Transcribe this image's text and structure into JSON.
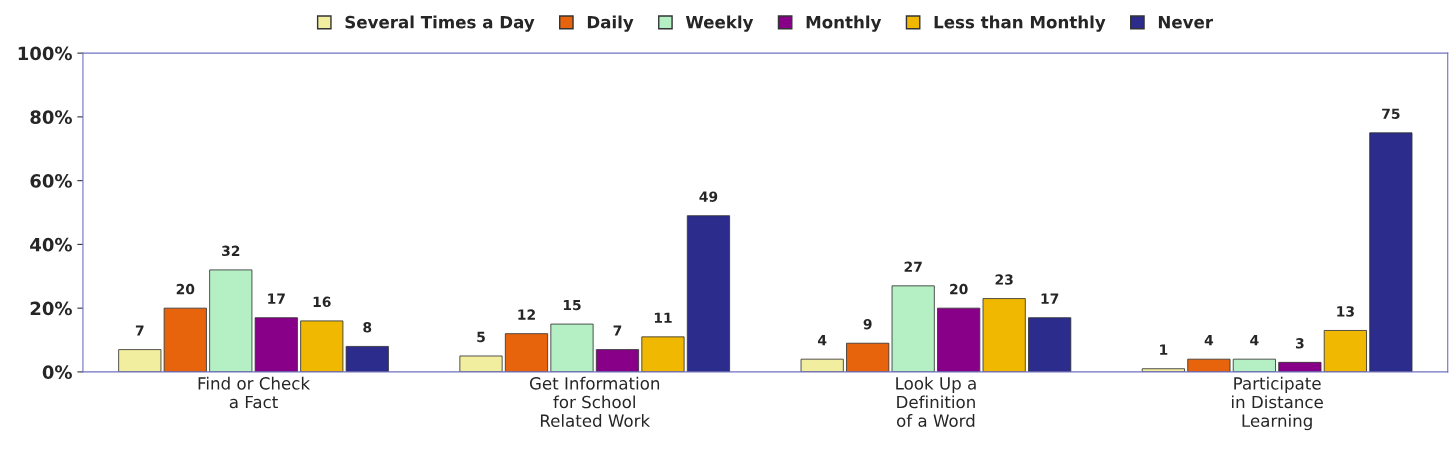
{
  "chart_data": {
    "type": "bar",
    "categories": [
      "Find or Check\na Fact",
      "Get Information\nfor School\nRelated Work",
      "Look Up a\nDefinition\nof a Word",
      "Participate\nin Distance\nLearning"
    ],
    "series": [
      {
        "name": "Several Times a Day",
        "color": "#f2eea0",
        "values": [
          7,
          5,
          4,
          1
        ]
      },
      {
        "name": "Daily",
        "color": "#e8640c",
        "values": [
          20,
          12,
          9,
          4
        ]
      },
      {
        "name": "Weekly",
        "color": "#b4f0c4",
        "values": [
          32,
          15,
          27,
          4
        ]
      },
      {
        "name": "Monthly",
        "color": "#880088",
        "values": [
          17,
          7,
          20,
          3
        ]
      },
      {
        "name": "Less than Monthly",
        "color": "#f0b800",
        "values": [
          16,
          11,
          23,
          13
        ]
      },
      {
        "name": "Never",
        "color": "#2c2c8c",
        "values": [
          8,
          49,
          17,
          75
        ]
      }
    ],
    "ylim": [
      0,
      100
    ],
    "yticks": [
      {
        "value": 0,
        "label": "0%"
      },
      {
        "value": 20,
        "label": "20%"
      },
      {
        "value": 40,
        "label": "40%"
      },
      {
        "value": 60,
        "label": "60%"
      },
      {
        "value": 80,
        "label": "80%"
      },
      {
        "value": 100,
        "label": "100%"
      }
    ],
    "data_labels": true,
    "grid": false,
    "legend": "top"
  }
}
